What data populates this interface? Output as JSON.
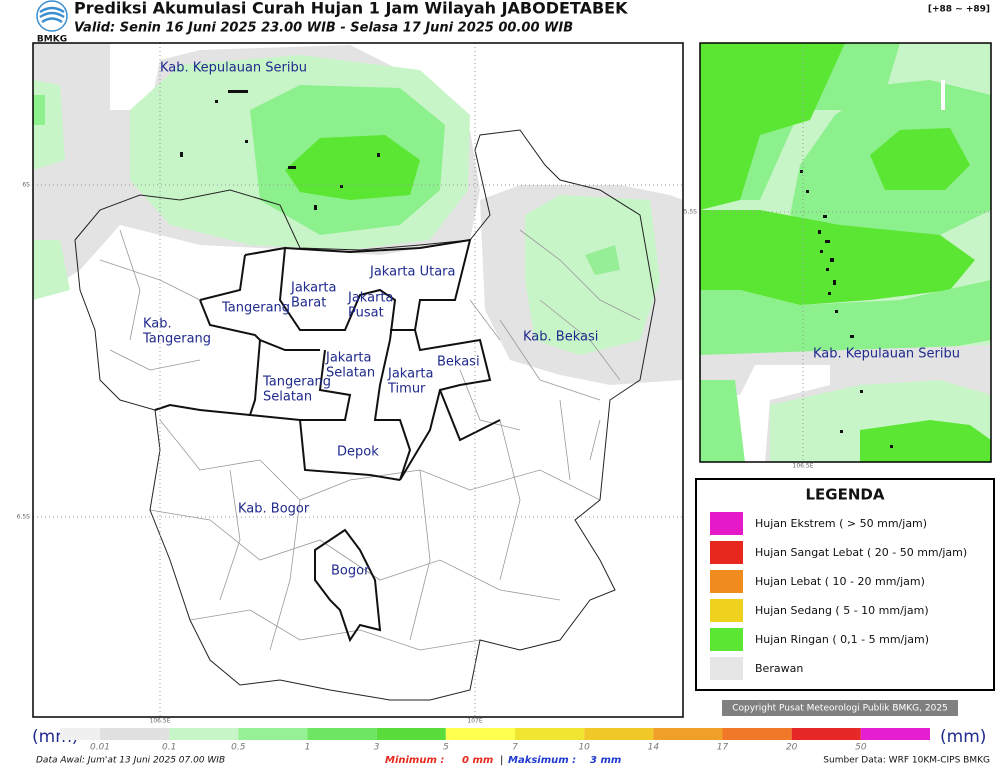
{
  "header": {
    "title": "Prediksi Akumulasi Curah Hujan 1 Jam Wilayah JABODETABEK",
    "valid": "Valid: Senin 16 Juni 2025 23.00 WIB - Selasa 17 Juni 2025 00.00 WIB",
    "logo": "BMKG",
    "code": "[+88 ~ +89]"
  },
  "map": {
    "lat_ticks": [
      "6S",
      "6.5S"
    ],
    "lon_ticks": [
      "106.5E",
      "107E"
    ],
    "labels": [
      {
        "lines": [
          "Kab. Kepulauan Seribu"
        ]
      },
      {
        "lines": [
          "Jakarta Utara"
        ]
      },
      {
        "lines": [
          "Jakarta",
          "Barat"
        ]
      },
      {
        "lines": [
          "Jakarta",
          "Pusat"
        ]
      },
      {
        "lines": [
          "Tangerang"
        ]
      },
      {
        "lines": [
          "Kab.",
          "Tangerang"
        ]
      },
      {
        "lines": [
          "Kab. Bekasi"
        ]
      },
      {
        "lines": [
          "Jakarta",
          "Selatan"
        ]
      },
      {
        "lines": [
          "Bekasi"
        ]
      },
      {
        "lines": [
          "Jakarta",
          "Timur"
        ]
      },
      {
        "lines": [
          "Tangerang",
          "Selatan"
        ]
      },
      {
        "lines": [
          "Depok"
        ]
      },
      {
        "lines": [
          "Kab. Bogor"
        ]
      },
      {
        "lines": [
          "Bogor"
        ]
      }
    ]
  },
  "inset": {
    "lat_tick": "5.5S",
    "lon_tick": "106.5E",
    "label": "Kab. Kepulauan Seribu"
  },
  "legend": {
    "title": "LEGENDA",
    "items": [
      {
        "label": "Hujan Ekstrem ( > 50 mm/jam)",
        "color": "#e619c8"
      },
      {
        "label": "Hujan Sangat Lebat ( 20 - 50 mm/jam)",
        "color": "#e8281e"
      },
      {
        "label": "Hujan Lebat ( 10 - 20 mm/jam)",
        "color": "#f08c1e"
      },
      {
        "label": "Hujan Sedang ( 5 - 10 mm/jam)",
        "color": "#f0d21e"
      },
      {
        "label": "Hujan Ringan ( 0,1 - 5 mm/jam)",
        "color": "#5ae632"
      },
      {
        "label": "Berawan",
        "color": "#e6e6e6"
      }
    ]
  },
  "copyright": "Copyright Pusat Meteorologi Publik BMKG, 2025",
  "colorbar": {
    "unit": "(mm)",
    "ticks": [
      0.01,
      0.1,
      0.5,
      1,
      3,
      5,
      7,
      10,
      14,
      17,
      20,
      50
    ],
    "colors": [
      "#e1e1e1",
      "#c8f5c8",
      "#96f096",
      "#6ee664",
      "#5adc3c",
      "#ffff50",
      "#f0e632",
      "#f0c828",
      "#f0a028",
      "#f07828",
      "#e62828",
      "#e61ed2"
    ]
  },
  "footer": {
    "data_awal": "Data Awal: Jum'at 13 Juni 2025 07.00 WIB",
    "min_label": "Minimum :",
    "min_value": "0 mm",
    "sep": "|",
    "max_label": "Maksimum :",
    "max_value": "3 mm",
    "source": "Sumber Data: WRF 10KM-CIPS BMKG"
  }
}
